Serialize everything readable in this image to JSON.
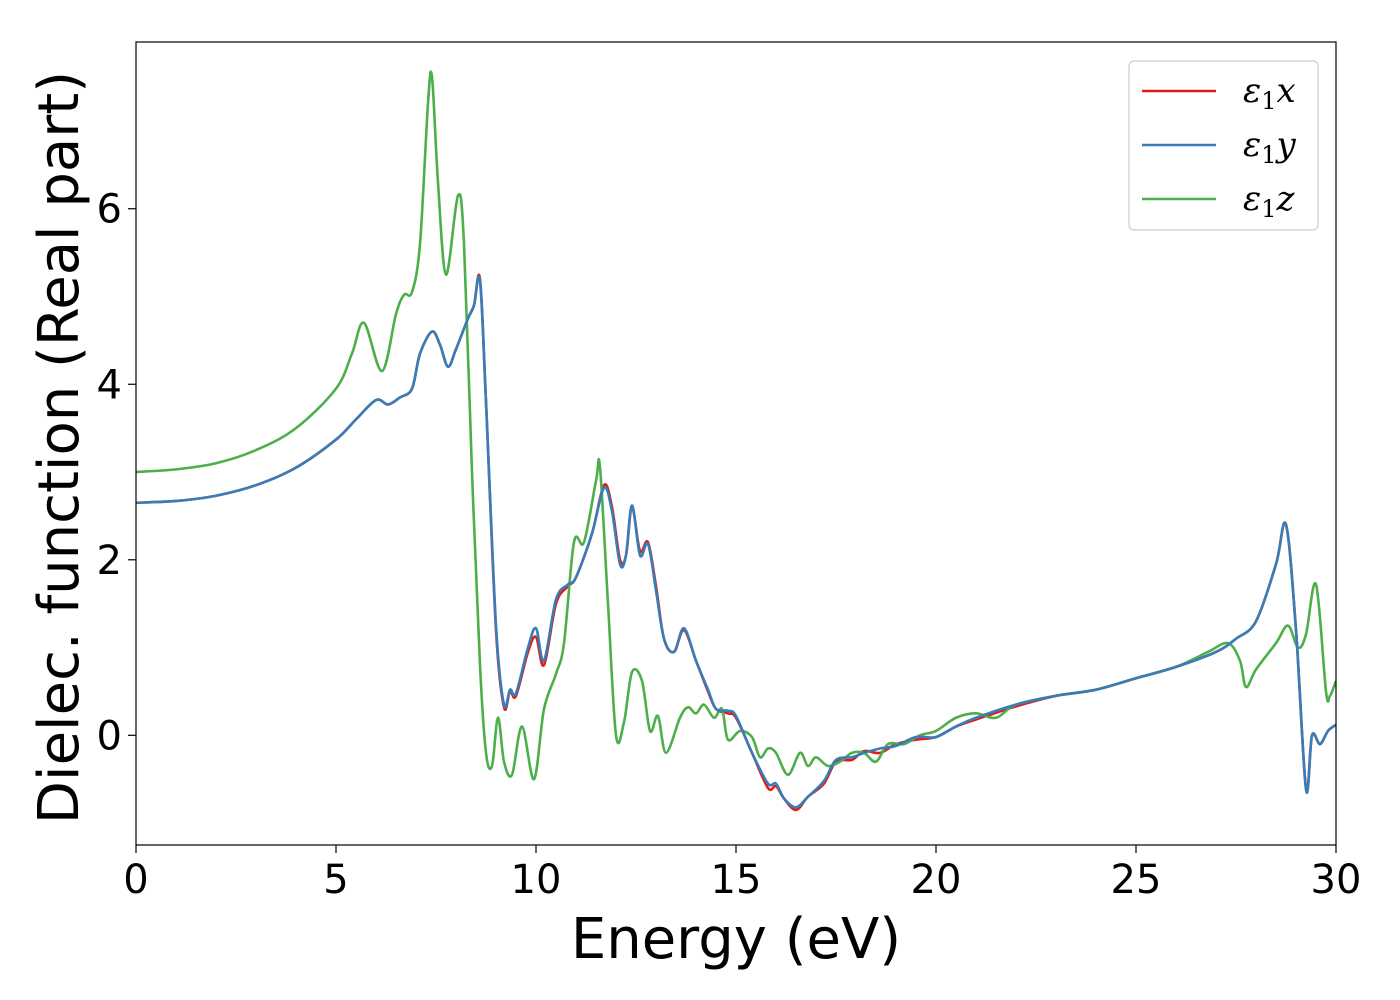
{
  "chart_data": {
    "type": "line",
    "title": "",
    "xlabel": "Energy (eV)",
    "ylabel": "Dielec. function (Real part)",
    "xlim": [
      0,
      30
    ],
    "ylim": [
      -1.25,
      7.9
    ],
    "xticks": [
      0,
      5,
      10,
      15,
      20,
      25,
      30
    ],
    "yticks": [
      0,
      2,
      4,
      6
    ],
    "grid": false,
    "legend_position": "top-right",
    "series": [
      {
        "name": "ε₁x",
        "legend_main": "ε",
        "legend_sub": "1",
        "legend_suffix": "x",
        "color": "#e41a1c",
        "points": [
          [
            0,
            2.65
          ],
          [
            1,
            2.67
          ],
          [
            2,
            2.73
          ],
          [
            3,
            2.85
          ],
          [
            4,
            3.05
          ],
          [
            5,
            3.37
          ],
          [
            5.5,
            3.6
          ],
          [
            6,
            3.82
          ],
          [
            6.3,
            3.77
          ],
          [
            6.6,
            3.85
          ],
          [
            6.9,
            3.95
          ],
          [
            7.1,
            4.35
          ],
          [
            7.4,
            4.6
          ],
          [
            7.6,
            4.45
          ],
          [
            7.8,
            4.2
          ],
          [
            8,
            4.4
          ],
          [
            8.3,
            4.75
          ],
          [
            8.45,
            4.9
          ],
          [
            8.6,
            5.2
          ],
          [
            8.75,
            3.8
          ],
          [
            9.0,
            1.2
          ],
          [
            9.2,
            0.32
          ],
          [
            9.35,
            0.5
          ],
          [
            9.5,
            0.45
          ],
          [
            9.8,
            0.95
          ],
          [
            10.0,
            1.12
          ],
          [
            10.2,
            0.8
          ],
          [
            10.5,
            1.5
          ],
          [
            10.8,
            1.7
          ],
          [
            11.0,
            1.8
          ],
          [
            11.4,
            2.3
          ],
          [
            11.7,
            2.85
          ],
          [
            11.9,
            2.6
          ],
          [
            12.1,
            2.0
          ],
          [
            12.25,
            2.05
          ],
          [
            12.4,
            2.6
          ],
          [
            12.6,
            2.1
          ],
          [
            12.8,
            2.2
          ],
          [
            13.0,
            1.7
          ],
          [
            13.2,
            1.1
          ],
          [
            13.45,
            0.95
          ],
          [
            13.7,
            1.2
          ],
          [
            14.0,
            0.85
          ],
          [
            14.3,
            0.5
          ],
          [
            14.5,
            0.3
          ],
          [
            14.8,
            0.25
          ],
          [
            15.0,
            0.2
          ],
          [
            15.4,
            -0.2
          ],
          [
            15.8,
            -0.6
          ],
          [
            16.0,
            -0.58
          ],
          [
            16.2,
            -0.72
          ],
          [
            16.5,
            -0.85
          ],
          [
            16.8,
            -0.7
          ],
          [
            17.2,
            -0.55
          ],
          [
            17.5,
            -0.3
          ],
          [
            17.9,
            -0.28
          ],
          [
            18.2,
            -0.18
          ],
          [
            18.6,
            -0.2
          ],
          [
            19.0,
            -0.1
          ],
          [
            19.5,
            -0.05
          ],
          [
            20.0,
            -0.02
          ],
          [
            20.5,
            0.1
          ],
          [
            21.0,
            0.18
          ],
          [
            22.0,
            0.33
          ],
          [
            23.0,
            0.45
          ],
          [
            24.0,
            0.52
          ],
          [
            25.0,
            0.65
          ],
          [
            26.0,
            0.78
          ],
          [
            27.0,
            0.95
          ],
          [
            27.5,
            1.1
          ],
          [
            28.0,
            1.3
          ],
          [
            28.5,
            1.95
          ],
          [
            28.75,
            2.4
          ],
          [
            29.0,
            1.2
          ],
          [
            29.25,
            -0.6
          ],
          [
            29.4,
            0.0
          ],
          [
            29.6,
            -0.1
          ],
          [
            29.8,
            0.05
          ],
          [
            30.0,
            0.12
          ]
        ]
      },
      {
        "name": "ε₁y",
        "legend_main": "ε",
        "legend_sub": "1",
        "legend_suffix": "y",
        "color": "#377eb8",
        "points": [
          [
            0,
            2.65
          ],
          [
            1,
            2.67
          ],
          [
            2,
            2.73
          ],
          [
            3,
            2.85
          ],
          [
            4,
            3.05
          ],
          [
            5,
            3.37
          ],
          [
            5.5,
            3.6
          ],
          [
            6,
            3.82
          ],
          [
            6.3,
            3.77
          ],
          [
            6.6,
            3.85
          ],
          [
            6.9,
            3.95
          ],
          [
            7.1,
            4.35
          ],
          [
            7.4,
            4.6
          ],
          [
            7.6,
            4.45
          ],
          [
            7.8,
            4.2
          ],
          [
            8,
            4.4
          ],
          [
            8.3,
            4.75
          ],
          [
            8.45,
            4.9
          ],
          [
            8.6,
            5.18
          ],
          [
            8.75,
            3.8
          ],
          [
            9.0,
            1.25
          ],
          [
            9.2,
            0.35
          ],
          [
            9.35,
            0.52
          ],
          [
            9.5,
            0.48
          ],
          [
            9.8,
            1.0
          ],
          [
            10.0,
            1.22
          ],
          [
            10.2,
            0.85
          ],
          [
            10.5,
            1.55
          ],
          [
            10.8,
            1.72
          ],
          [
            11.0,
            1.8
          ],
          [
            11.4,
            2.3
          ],
          [
            11.7,
            2.82
          ],
          [
            11.9,
            2.55
          ],
          [
            12.1,
            1.95
          ],
          [
            12.25,
            2.05
          ],
          [
            12.4,
            2.62
          ],
          [
            12.6,
            2.05
          ],
          [
            12.8,
            2.18
          ],
          [
            13.0,
            1.65
          ],
          [
            13.2,
            1.1
          ],
          [
            13.45,
            0.95
          ],
          [
            13.7,
            1.22
          ],
          [
            14.0,
            0.85
          ],
          [
            14.3,
            0.52
          ],
          [
            14.5,
            0.3
          ],
          [
            14.8,
            0.28
          ],
          [
            15.0,
            0.22
          ],
          [
            15.4,
            -0.2
          ],
          [
            15.8,
            -0.55
          ],
          [
            16.0,
            -0.55
          ],
          [
            16.2,
            -0.72
          ],
          [
            16.5,
            -0.82
          ],
          [
            16.8,
            -0.7
          ],
          [
            17.2,
            -0.52
          ],
          [
            17.5,
            -0.28
          ],
          [
            17.9,
            -0.25
          ],
          [
            18.2,
            -0.2
          ],
          [
            18.6,
            -0.15
          ],
          [
            19.0,
            -0.12
          ],
          [
            19.5,
            -0.02
          ],
          [
            20.0,
            -0.02
          ],
          [
            20.5,
            0.1
          ],
          [
            21.0,
            0.2
          ],
          [
            22.0,
            0.35
          ],
          [
            23.0,
            0.45
          ],
          [
            24.0,
            0.52
          ],
          [
            25.0,
            0.65
          ],
          [
            26.0,
            0.78
          ],
          [
            27.0,
            0.95
          ],
          [
            27.5,
            1.1
          ],
          [
            28.0,
            1.3
          ],
          [
            28.5,
            1.95
          ],
          [
            28.75,
            2.4
          ],
          [
            29.0,
            1.2
          ],
          [
            29.25,
            -0.62
          ],
          [
            29.4,
            0.0
          ],
          [
            29.6,
            -0.1
          ],
          [
            29.8,
            0.05
          ],
          [
            30.0,
            0.12
          ]
        ]
      },
      {
        "name": "ε₁z",
        "legend_main": "ε",
        "legend_sub": "1",
        "legend_suffix": "z",
        "color": "#4daf4a",
        "points": [
          [
            0,
            3.0
          ],
          [
            1,
            3.03
          ],
          [
            2,
            3.1
          ],
          [
            3,
            3.25
          ],
          [
            4,
            3.5
          ],
          [
            5,
            3.95
          ],
          [
            5.4,
            4.35
          ],
          [
            5.7,
            4.7
          ],
          [
            6.15,
            4.15
          ],
          [
            6.5,
            4.8
          ],
          [
            6.7,
            5.02
          ],
          [
            6.9,
            5.05
          ],
          [
            7.1,
            5.6
          ],
          [
            7.3,
            7.2
          ],
          [
            7.4,
            7.5
          ],
          [
            7.55,
            6.3
          ],
          [
            7.75,
            5.25
          ],
          [
            8.05,
            6.15
          ],
          [
            8.2,
            5.6
          ],
          [
            8.4,
            3.0
          ],
          [
            8.6,
            0.8
          ],
          [
            8.75,
            -0.2
          ],
          [
            8.9,
            -0.35
          ],
          [
            9.05,
            0.2
          ],
          [
            9.2,
            -0.3
          ],
          [
            9.4,
            -0.45
          ],
          [
            9.65,
            0.1
          ],
          [
            9.95,
            -0.5
          ],
          [
            10.2,
            0.3
          ],
          [
            10.5,
            0.7
          ],
          [
            10.7,
            1.05
          ],
          [
            10.95,
            2.2
          ],
          [
            11.2,
            2.2
          ],
          [
            11.5,
            2.9
          ],
          [
            11.6,
            3.05
          ],
          [
            11.8,
            1.5
          ],
          [
            12.0,
            0.0
          ],
          [
            12.2,
            0.15
          ],
          [
            12.4,
            0.72
          ],
          [
            12.65,
            0.62
          ],
          [
            12.85,
            0.05
          ],
          [
            13.05,
            0.22
          ],
          [
            13.25,
            -0.2
          ],
          [
            13.6,
            0.2
          ],
          [
            13.8,
            0.32
          ],
          [
            14.0,
            0.25
          ],
          [
            14.2,
            0.35
          ],
          [
            14.45,
            0.2
          ],
          [
            14.65,
            0.3
          ],
          [
            14.8,
            -0.05
          ],
          [
            15.1,
            0.05
          ],
          [
            15.4,
            -0.02
          ],
          [
            15.6,
            -0.25
          ],
          [
            15.8,
            -0.15
          ],
          [
            16.0,
            -0.2
          ],
          [
            16.3,
            -0.45
          ],
          [
            16.6,
            -0.2
          ],
          [
            16.8,
            -0.35
          ],
          [
            17.0,
            -0.25
          ],
          [
            17.3,
            -0.35
          ],
          [
            17.6,
            -0.3
          ],
          [
            17.9,
            -0.2
          ],
          [
            18.2,
            -0.2
          ],
          [
            18.5,
            -0.3
          ],
          [
            18.8,
            -0.1
          ],
          [
            19.2,
            -0.1
          ],
          [
            19.6,
            0.0
          ],
          [
            20.0,
            0.05
          ],
          [
            20.5,
            0.2
          ],
          [
            21.0,
            0.25
          ],
          [
            21.5,
            0.2
          ],
          [
            22.0,
            0.35
          ],
          [
            23.0,
            0.45
          ],
          [
            24.0,
            0.52
          ],
          [
            25.0,
            0.65
          ],
          [
            26.0,
            0.78
          ],
          [
            26.8,
            0.95
          ],
          [
            27.3,
            1.05
          ],
          [
            27.6,
            0.85
          ],
          [
            27.75,
            0.55
          ],
          [
            28.0,
            0.75
          ],
          [
            28.5,
            1.05
          ],
          [
            28.8,
            1.25
          ],
          [
            29.05,
            1.0
          ],
          [
            29.25,
            1.15
          ],
          [
            29.5,
            1.72
          ],
          [
            29.75,
            0.5
          ],
          [
            29.85,
            0.45
          ],
          [
            30.0,
            0.62
          ]
        ]
      }
    ]
  }
}
